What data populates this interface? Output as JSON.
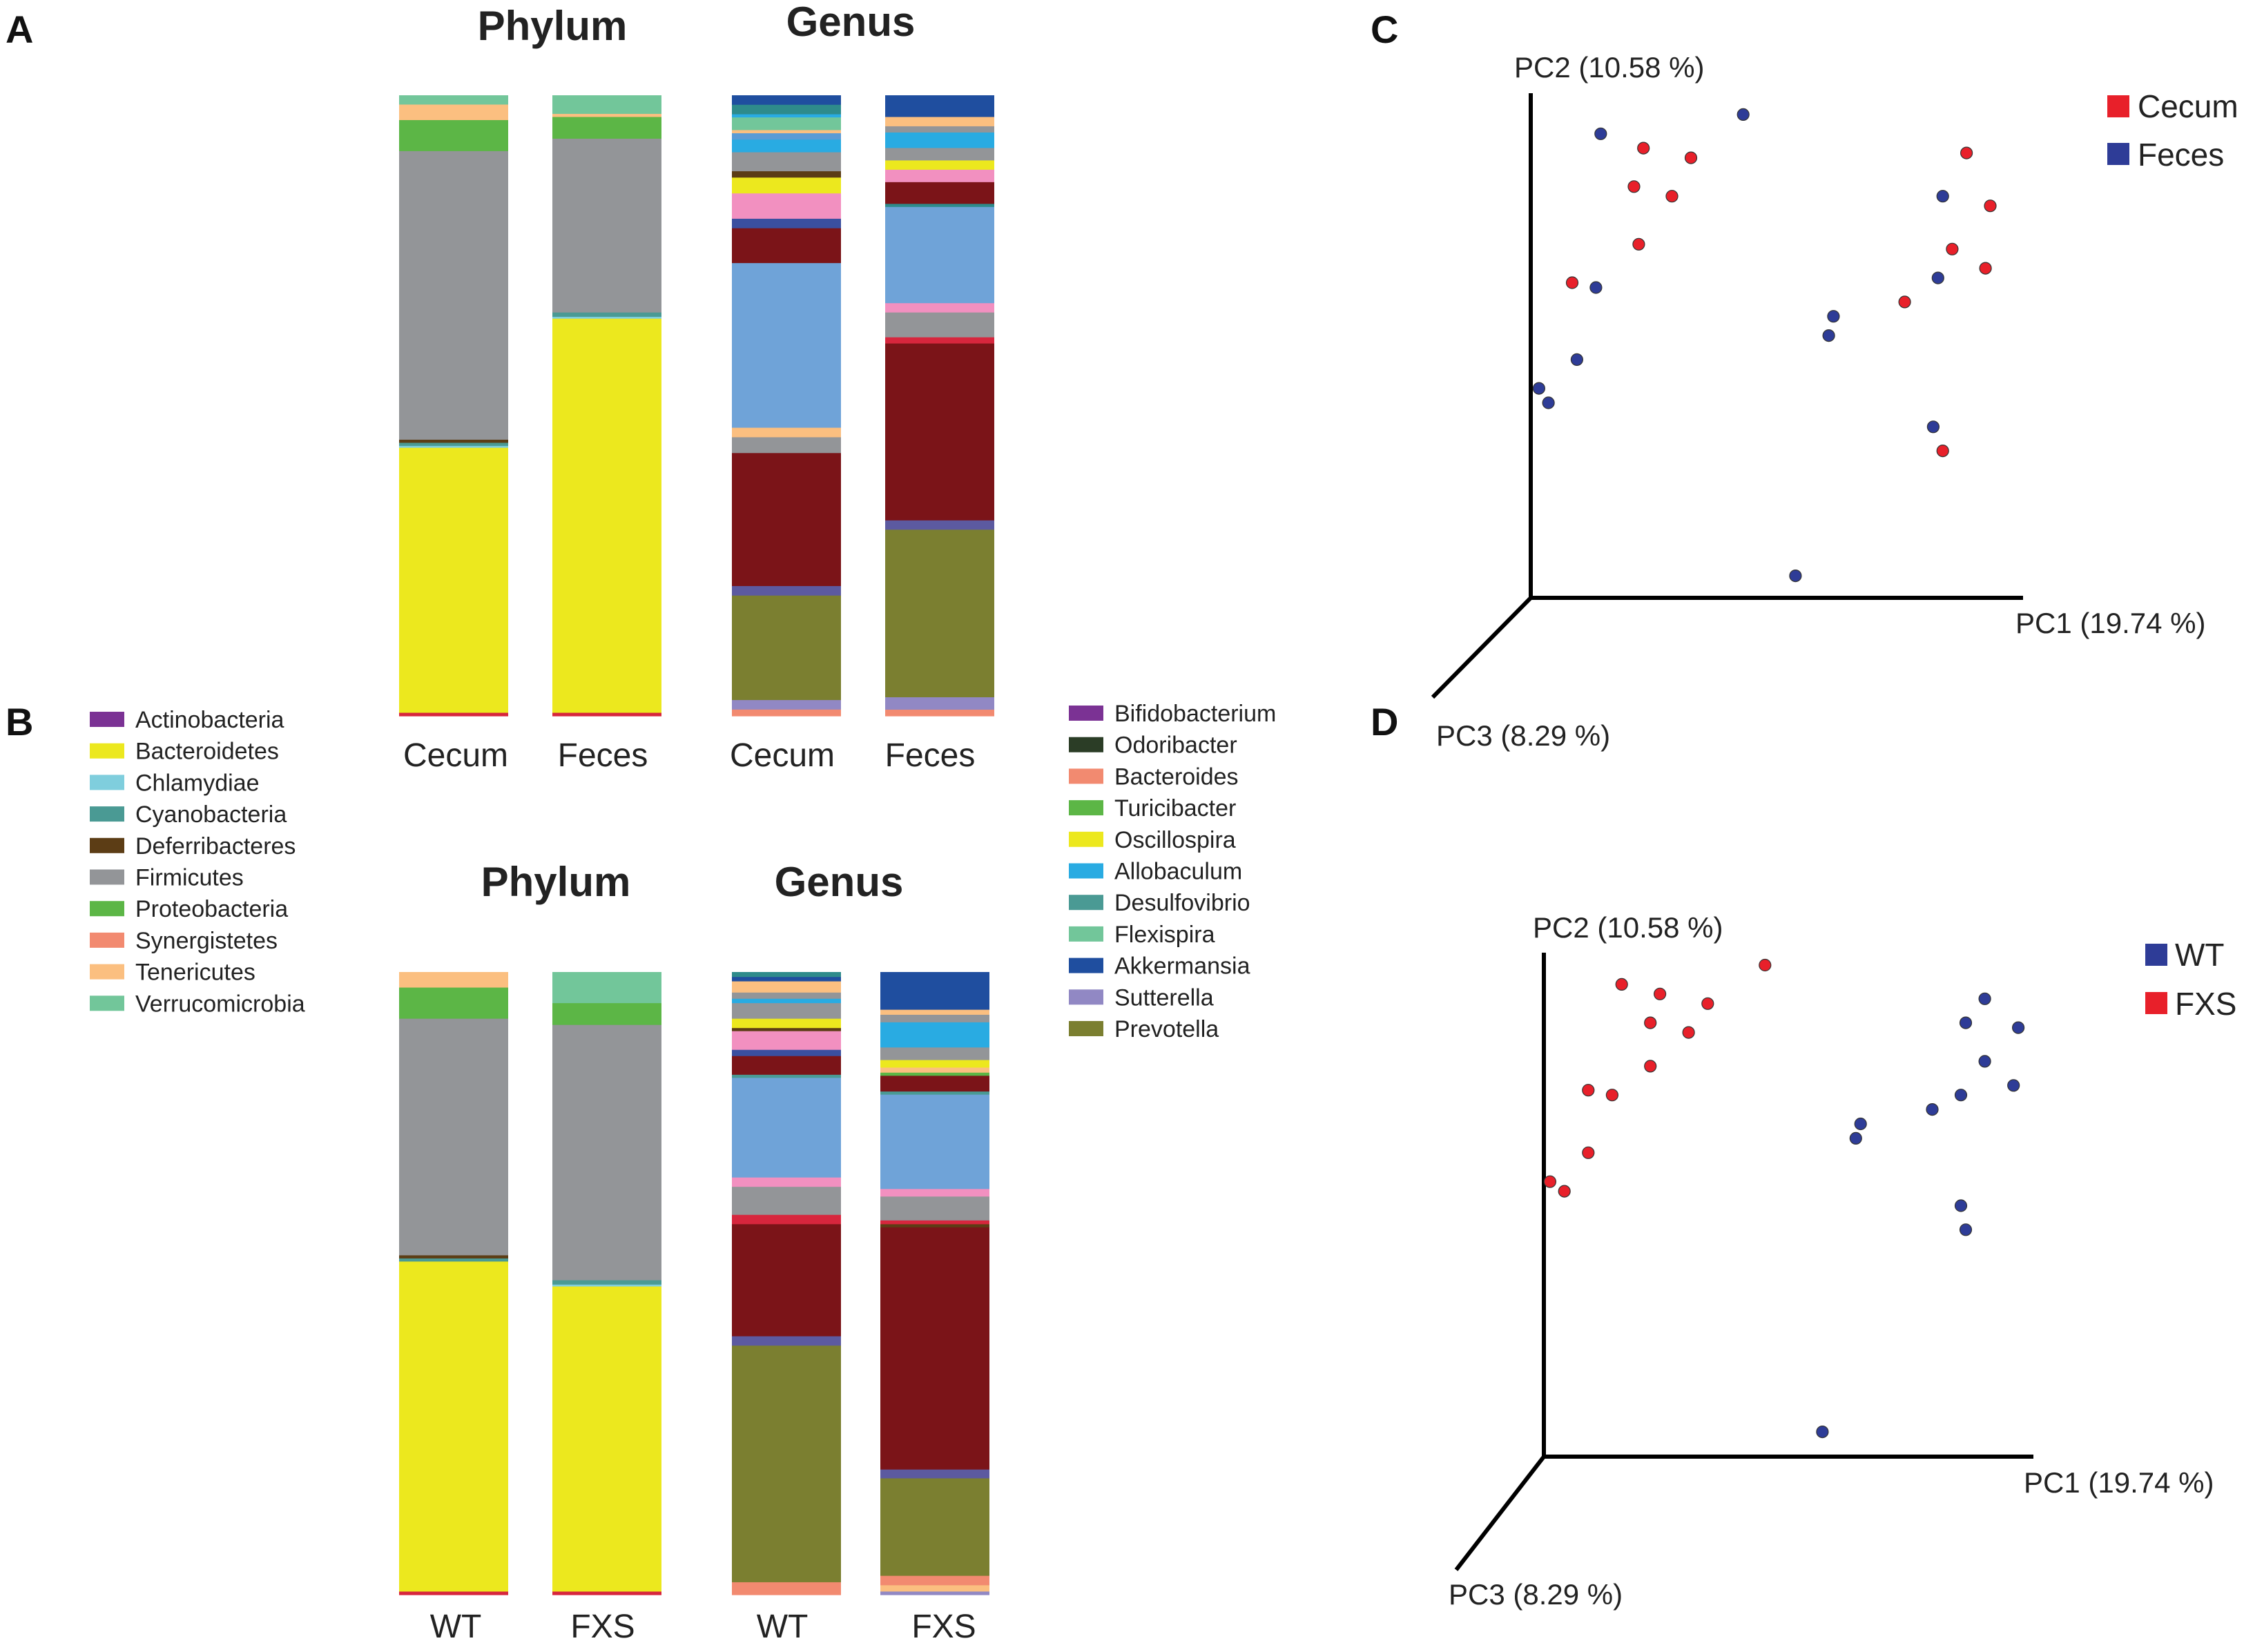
{
  "panels": {
    "a": "A",
    "b": "B",
    "c": "C",
    "d": "D"
  },
  "phylum_legend": [
    {
      "name": "Actinobacteria",
      "color": "#7b3294"
    },
    {
      "name": "Bacteroidetes",
      "color": "#ece81e"
    },
    {
      "name": "Chlamydiae",
      "color": "#7fcedd"
    },
    {
      "name": "Cyanobacteria",
      "color": "#4a9a94"
    },
    {
      "name": "Deferribacteres",
      "color": "#5c3d15"
    },
    {
      "name": "Firmicutes",
      "color": "#939598"
    },
    {
      "name": "Proteobacteria",
      "color": "#5cb646"
    },
    {
      "name": "Synergistetes",
      "color": "#f28a70"
    },
    {
      "name": "Tenericutes",
      "color": "#fbbf80"
    },
    {
      "name": "Verrucomicrobia",
      "color": "#72c69a"
    }
  ],
  "genus_legend": [
    {
      "name": "Bifidobacterium",
      "color": "#7b3294"
    },
    {
      "name": "Odoribacter",
      "color": "#2b3d26"
    },
    {
      "name": "Bacteroides",
      "color": "#f28a70"
    },
    {
      "name": "Turicibacter",
      "color": "#5cb646"
    },
    {
      "name": "Oscillospira",
      "color": "#ece81e"
    },
    {
      "name": "Allobaculum",
      "color": "#29abe2"
    },
    {
      "name": "Desulfovibrio",
      "color": "#4a9a94"
    },
    {
      "name": "Flexispira",
      "color": "#72c69a"
    },
    {
      "name": "Akkermansia",
      "color": "#1f4e9f"
    },
    {
      "name": "Sutterella",
      "color": "#9188c4"
    },
    {
      "name": "Prevotella",
      "color": "#7b7f30"
    }
  ],
  "chart_data": [
    {
      "id": "A-phylum",
      "type": "bar",
      "stacked": true,
      "title": "Phylum",
      "categories": [
        "Cecum",
        "Feces"
      ],
      "stack_order": "top-to-bottom, percent",
      "bars": [
        {
          "label": "Cecum",
          "segments": [
            {
              "name": "Verrucomicrobia",
              "color": "#72c69a",
              "value": 1.5
            },
            {
              "name": "Tenericutes",
              "color": "#fbbf80",
              "value": 2.5
            },
            {
              "name": "Proteobacteria",
              "color": "#5cb646",
              "value": 5.0
            },
            {
              "name": "Firmicutes",
              "color": "#939598",
              "value": 46.5
            },
            {
              "name": "Deferribacteres",
              "color": "#5c3d15",
              "value": 0.5
            },
            {
              "name": "Cyanobacteria",
              "color": "#4a9a94",
              "value": 0.5
            },
            {
              "name": "Chlamydiae",
              "color": "#7fcedd",
              "value": 0.3
            },
            {
              "name": "Bacteroidetes",
              "color": "#ece81e",
              "value": 42.7
            },
            {
              "name": "other",
              "color": "#d7263d",
              "value": 0.5
            }
          ]
        },
        {
          "label": "Feces",
          "segments": [
            {
              "name": "Verrucomicrobia",
              "color": "#72c69a",
              "value": 3.0
            },
            {
              "name": "Tenericutes",
              "color": "#fbbf80",
              "value": 0.5
            },
            {
              "name": "Proteobacteria",
              "color": "#5cb646",
              "value": 3.5
            },
            {
              "name": "Firmicutes",
              "color": "#939598",
              "value": 28.0
            },
            {
              "name": "Cyanobacteria",
              "color": "#4a9a94",
              "value": 0.7
            },
            {
              "name": "Chlamydiae",
              "color": "#7fcedd",
              "value": 0.3
            },
            {
              "name": "Bacteroidetes",
              "color": "#ece81e",
              "value": 63.5
            },
            {
              "name": "other",
              "color": "#d7263d",
              "value": 0.5
            }
          ]
        }
      ]
    },
    {
      "id": "A-genus",
      "type": "bar",
      "stacked": true,
      "title": "Genus",
      "categories": [
        "Cecum",
        "Feces"
      ],
      "stack_order": "top-to-bottom, percent",
      "bars": [
        {
          "label": "Cecum",
          "segments": [
            {
              "color": "#1f4e9f",
              "value": 1.5
            },
            {
              "color": "#2e8b8b",
              "value": 1.5
            },
            {
              "color": "#29abe2",
              "value": 0.5
            },
            {
              "color": "#72c69a",
              "value": 2.0
            },
            {
              "color": "#fbbf80",
              "value": 0.5
            },
            {
              "color": "#5b9bd5",
              "value": 1.0
            },
            {
              "color": "#29abe2",
              "value": 2.0
            },
            {
              "color": "#939598",
              "value": 3.0
            },
            {
              "color": "#5c3d15",
              "value": 1.0
            },
            {
              "color": "#ece81e",
              "value": 2.5
            },
            {
              "color": "#f290c0",
              "value": 4.0
            },
            {
              "color": "#3a4fa0",
              "value": 1.5
            },
            {
              "color": "#7b1418",
              "value": 5.5
            },
            {
              "color": "#6fa3d8",
              "value": 26.0
            },
            {
              "color": "#fbbf80",
              "value": 1.5
            },
            {
              "color": "#939598",
              "value": 2.5
            },
            {
              "color": "#7b1418",
              "value": 21.0
            },
            {
              "color": "#5c5aa0",
              "value": 1.5
            },
            {
              "color": "#7b7f30",
              "value": 16.5
            },
            {
              "color": "#9188c4",
              "value": 1.5
            },
            {
              "color": "#f28a70",
              "value": 1.0
            }
          ]
        },
        {
          "label": "Feces",
          "segments": [
            {
              "color": "#1f4e9f",
              "value": 3.5
            },
            {
              "color": "#fbbf80",
              "value": 1.5
            },
            {
              "color": "#939598",
              "value": 1.0
            },
            {
              "color": "#29abe2",
              "value": 2.5
            },
            {
              "color": "#939598",
              "value": 2.0
            },
            {
              "color": "#ece81e",
              "value": 1.5
            },
            {
              "color": "#f290c0",
              "value": 2.0
            },
            {
              "color": "#7b1418",
              "value": 3.5
            },
            {
              "color": "#2e8b8b",
              "value": 0.5
            },
            {
              "color": "#6fa3d8",
              "value": 15.5
            },
            {
              "color": "#f290c0",
              "value": 1.5
            },
            {
              "color": "#939598",
              "value": 4.0
            },
            {
              "color": "#d7263d",
              "value": 1.0
            },
            {
              "color": "#7b1418",
              "value": 28.5
            },
            {
              "color": "#5c5aa0",
              "value": 1.5
            },
            {
              "color": "#7b7f30",
              "value": 27.0
            },
            {
              "color": "#9188c4",
              "value": 2.0
            },
            {
              "color": "#f28a70",
              "value": 1.0
            }
          ]
        }
      ]
    },
    {
      "id": "B-phylum",
      "type": "bar",
      "stacked": true,
      "title": "Phylum",
      "categories": [
        "WT",
        "FXS"
      ],
      "stack_order": "top-to-bottom, percent",
      "bars": [
        {
          "label": "WT",
          "segments": [
            {
              "name": "Tenericutes",
              "color": "#fbbf80",
              "value": 2.5
            },
            {
              "name": "Proteobacteria",
              "color": "#5cb646",
              "value": 5.0
            },
            {
              "name": "Firmicutes",
              "color": "#939598",
              "value": 38.0
            },
            {
              "name": "Deferribacteres",
              "color": "#5c3d15",
              "value": 0.5
            },
            {
              "name": "Cyanobacteria",
              "color": "#4a9a94",
              "value": 0.5
            },
            {
              "name": "Bacteroidetes",
              "color": "#ece81e",
              "value": 53.0
            },
            {
              "name": "other",
              "color": "#d7263d",
              "value": 0.5
            }
          ]
        },
        {
          "label": "FXS",
          "segments": [
            {
              "name": "Verrucomicrobia",
              "color": "#72c69a",
              "value": 5.0
            },
            {
              "name": "Proteobacteria",
              "color": "#5cb646",
              "value": 3.5
            },
            {
              "name": "Firmicutes",
              "color": "#939598",
              "value": 41.0
            },
            {
              "name": "Cyanobacteria",
              "color": "#4a9a94",
              "value": 0.7
            },
            {
              "name": "Chlamydiae",
              "color": "#7fcedd",
              "value": 0.3
            },
            {
              "name": "Bacteroidetes",
              "color": "#ece81e",
              "value": 49.0
            },
            {
              "name": "other",
              "color": "#d7263d",
              "value": 0.5
            }
          ]
        }
      ]
    },
    {
      "id": "B-genus",
      "type": "bar",
      "stacked": true,
      "title": "Genus",
      "categories": [
        "WT",
        "FXS"
      ],
      "stack_order": "top-to-bottom, percent",
      "bars": [
        {
          "label": "WT",
          "segments": [
            {
              "color": "#2e8b8b",
              "value": 0.8
            },
            {
              "color": "#1f4e9f",
              "value": 0.7
            },
            {
              "color": "#fbbf80",
              "value": 1.8
            },
            {
              "color": "#939598",
              "value": 1.0
            },
            {
              "color": "#29abe2",
              "value": 0.7
            },
            {
              "color": "#939598",
              "value": 2.5
            },
            {
              "color": "#ece81e",
              "value": 1.5
            },
            {
              "color": "#5c3d15",
              "value": 0.5
            },
            {
              "color": "#f290c0",
              "value": 3.0
            },
            {
              "color": "#3a4fa0",
              "value": 1.0
            },
            {
              "color": "#7b1418",
              "value": 3.0
            },
            {
              "color": "#4a9a94",
              "value": 0.5
            },
            {
              "color": "#6fa3d8",
              "value": 16.0
            },
            {
              "color": "#f290c0",
              "value": 1.5
            },
            {
              "color": "#939598",
              "value": 4.5
            },
            {
              "color": "#d7263d",
              "value": 1.5
            },
            {
              "color": "#7b1418",
              "value": 18.0
            },
            {
              "color": "#5c5aa0",
              "value": 1.5
            },
            {
              "color": "#7b7f30",
              "value": 38.0
            },
            {
              "color": "#f28a70",
              "value": 2.0
            }
          ]
        },
        {
          "label": "FXS",
          "segments": [
            {
              "color": "#1f4e9f",
              "value": 6.0
            },
            {
              "color": "#fbbf80",
              "value": 0.8
            },
            {
              "color": "#939598",
              "value": 1.2
            },
            {
              "color": "#29abe2",
              "value": 4.0
            },
            {
              "color": "#939598",
              "value": 2.0
            },
            {
              "color": "#ece81e",
              "value": 1.2
            },
            {
              "color": "#fbbf80",
              "value": 0.8
            },
            {
              "color": "#5cb646",
              "value": 0.5
            },
            {
              "color": "#7b1418",
              "value": 2.5
            },
            {
              "color": "#4a9a94",
              "value": 0.5
            },
            {
              "color": "#6fa3d8",
              "value": 15.0
            },
            {
              "color": "#f290c0",
              "value": 1.2
            },
            {
              "color": "#939598",
              "value": 3.8
            },
            {
              "color": "#d7263d",
              "value": 0.6
            },
            {
              "color": "#5c3d15",
              "value": 0.5
            },
            {
              "color": "#7b1418",
              "value": 38.5
            },
            {
              "color": "#5c5aa0",
              "value": 1.4
            },
            {
              "color": "#7b7f30",
              "value": 15.5
            },
            {
              "color": "#f28a70",
              "value": 1.5
            },
            {
              "color": "#fbbf80",
              "value": 1.0
            },
            {
              "color": "#9188c4",
              "value": 0.5
            }
          ]
        }
      ]
    },
    {
      "id": "C",
      "type": "scatter",
      "projection": "3d-pcoa",
      "xlabel": "PC1 (19.74 %)",
      "ylabel": "PC2 (10.58 %)",
      "zlabel": "PC3 (8.29 %)",
      "xlim": [
        0,
        1
      ],
      "ylim": [
        0,
        1
      ],
      "legend_position": "top-right",
      "series": [
        {
          "name": "Cecum",
          "color": "#e8202a",
          "points": [
            [
              0.23,
              0.91
            ],
            [
              0.33,
              0.89
            ],
            [
              0.21,
              0.83
            ],
            [
              0.29,
              0.81
            ],
            [
              0.22,
              0.71
            ],
            [
              0.08,
              0.63
            ],
            [
              0.91,
              0.9
            ],
            [
              0.96,
              0.79
            ],
            [
              0.88,
              0.7
            ],
            [
              0.95,
              0.66
            ],
            [
              0.78,
              0.59
            ],
            [
              0.86,
              0.28
            ]
          ]
        },
        {
          "name": "Feces",
          "color": "#2e3c97",
          "points": [
            [
              0.14,
              0.94
            ],
            [
              0.44,
              0.98
            ],
            [
              0.13,
              0.62
            ],
            [
              0.09,
              0.47
            ],
            [
              0.01,
              0.41
            ],
            [
              0.03,
              0.38
            ],
            [
              0.86,
              0.81
            ],
            [
              0.85,
              0.64
            ],
            [
              0.63,
              0.56
            ],
            [
              0.62,
              0.52
            ],
            [
              0.84,
              0.33
            ],
            [
              0.55,
              0.02
            ]
          ]
        }
      ]
    },
    {
      "id": "D",
      "type": "scatter",
      "projection": "3d-pcoa",
      "xlabel": "PC1 (19.74 %)",
      "ylabel": "PC2 (10.58 %)",
      "zlabel": "PC3 (8.29 %)",
      "xlim": [
        0,
        1
      ],
      "ylim": [
        0,
        1
      ],
      "legend_position": "top-right",
      "series": [
        {
          "name": "WT",
          "color": "#2e3c97",
          "points": [
            [
              0.92,
              0.93
            ],
            [
              0.88,
              0.88
            ],
            [
              0.99,
              0.87
            ],
            [
              0.92,
              0.8
            ],
            [
              0.98,
              0.75
            ],
            [
              0.87,
              0.73
            ],
            [
              0.81,
              0.7
            ],
            [
              0.66,
              0.67
            ],
            [
              0.65,
              0.64
            ],
            [
              0.87,
              0.5
            ],
            [
              0.88,
              0.45
            ],
            [
              0.58,
              0.03
            ]
          ]
        },
        {
          "name": "FXS",
          "color": "#e8202a",
          "points": [
            [
              0.46,
              1.0
            ],
            [
              0.16,
              0.96
            ],
            [
              0.24,
              0.94
            ],
            [
              0.34,
              0.92
            ],
            [
              0.22,
              0.88
            ],
            [
              0.3,
              0.86
            ],
            [
              0.22,
              0.79
            ],
            [
              0.09,
              0.74
            ],
            [
              0.14,
              0.73
            ],
            [
              0.09,
              0.61
            ],
            [
              0.01,
              0.55
            ],
            [
              0.04,
              0.53
            ]
          ]
        }
      ]
    }
  ]
}
